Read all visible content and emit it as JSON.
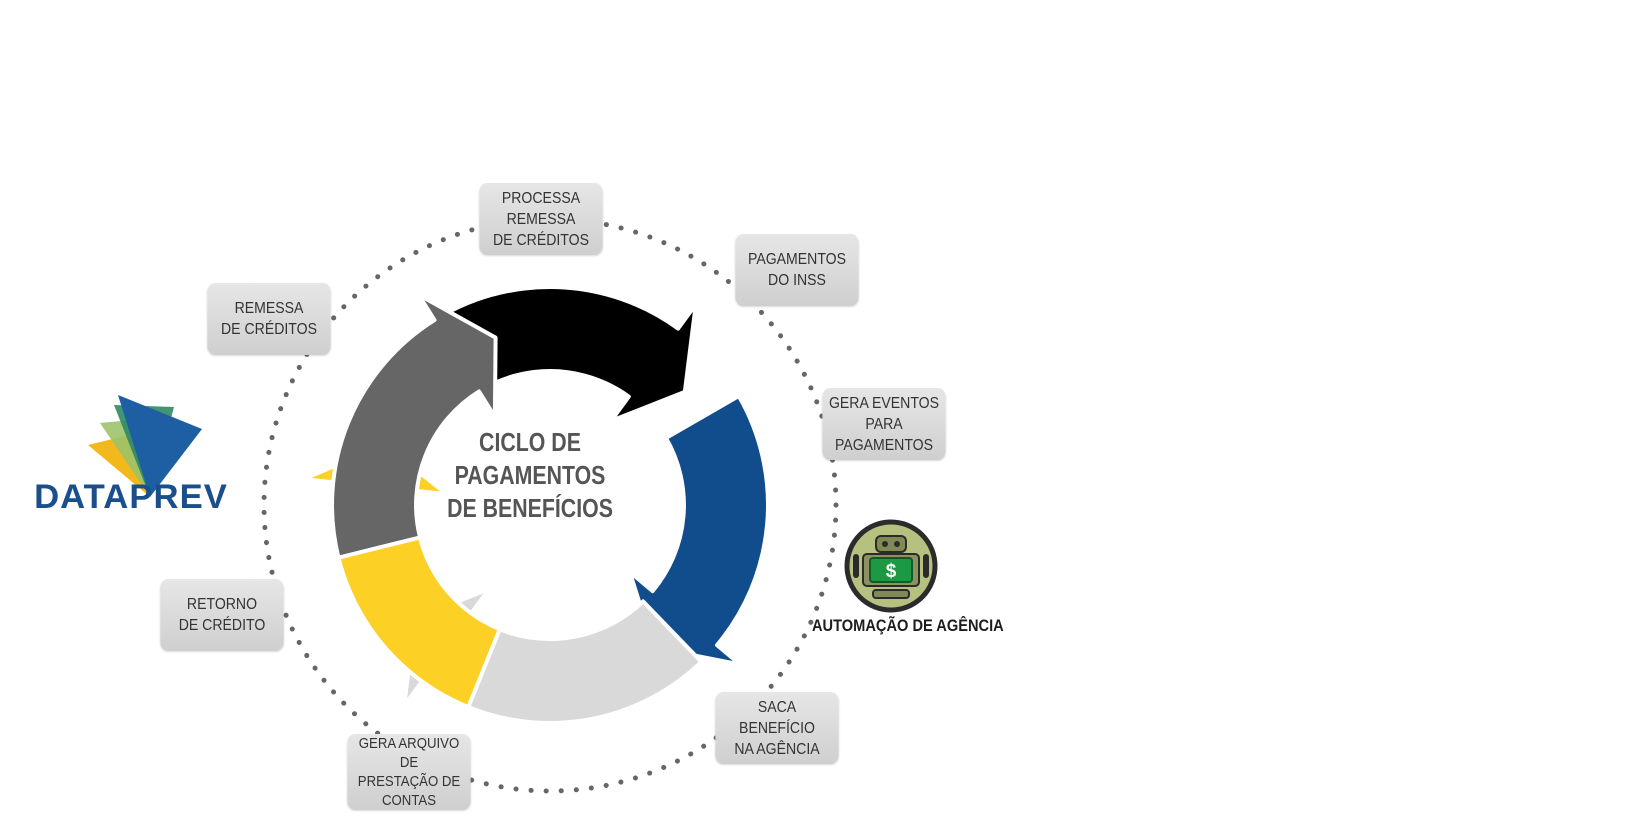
{
  "title": "CICLO DE\nPAGAMENTOS\nDE BENEFÍCIOS",
  "logo": {
    "text": "DATAPREV"
  },
  "steps": [
    {
      "label": "PROCESSA\nREMESSA\nDE CRÉDITOS"
    },
    {
      "label": "PAGAMENTOS\nDO INSS"
    },
    {
      "label": "GERA EVENTOS\nPARA PAGAMENTOS"
    },
    {
      "label": "SACA BENEFÍCIO\nNA AGÊNCIA"
    },
    {
      "label": "GERA ARQUIVO DE\nPRESTAÇÃO DE\nCONTAS"
    },
    {
      "label": "RETORNO\nDE CRÉDITO"
    },
    {
      "label": "REMESSA\nDE CRÉDITOS"
    }
  ],
  "automation": {
    "label": "AUTOMAÇÃO DE AGÊNCIA",
    "icon": "robot-money-icon",
    "symbol": "$"
  },
  "colors": {
    "arrow_black": "#000000",
    "arrow_blue": "#114c8c",
    "arrow_lightgray": "#d9d9d9",
    "arrow_yellow": "#fdd025",
    "arrow_darkgray": "#666666",
    "box_gray": "#d8d8d8",
    "dots": "#666666",
    "logo_blue": "#1a4f8c"
  }
}
